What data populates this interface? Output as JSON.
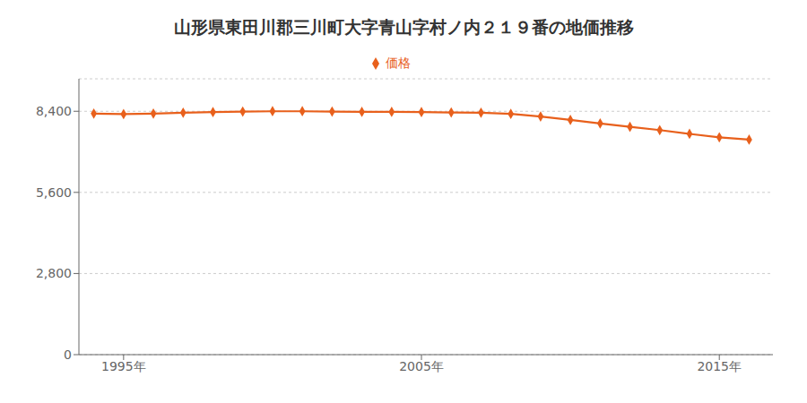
{
  "chart_data": {
    "type": "line",
    "title": "山形県東田川郡三川町大字青山字村ノ内２１９番の地価推移",
    "x": [
      1994,
      1995,
      1996,
      1997,
      1998,
      1999,
      2000,
      2001,
      2002,
      2003,
      2004,
      2005,
      2006,
      2007,
      2008,
      2009,
      2010,
      2011,
      2012,
      2013,
      2014,
      2015,
      2016
    ],
    "series": [
      {
        "name": "価格",
        "color": "#e8601c",
        "marker": "diamond",
        "values": [
          8320,
          8300,
          8320,
          8350,
          8370,
          8390,
          8400,
          8400,
          8390,
          8380,
          8380,
          8370,
          8360,
          8350,
          8310,
          8220,
          8100,
          7980,
          7860,
          7750,
          7620,
          7500,
          7420
        ]
      }
    ],
    "xlim": [
      1993.5,
      2016.8
    ],
    "xticks": [
      {
        "value": 1995,
        "label": "1995年"
      },
      {
        "value": 2005,
        "label": "2005年"
      },
      {
        "value": 2015,
        "label": "2015年"
      }
    ],
    "ylim": [
      0,
      9520
    ],
    "yticks": [
      0,
      {
        "value": 2800,
        "label": "2,800"
      },
      {
        "value": 5600,
        "label": "5,600"
      },
      {
        "value": 8400,
        "label": "8,400"
      }
    ],
    "grid": "y",
    "legend": "top"
  }
}
